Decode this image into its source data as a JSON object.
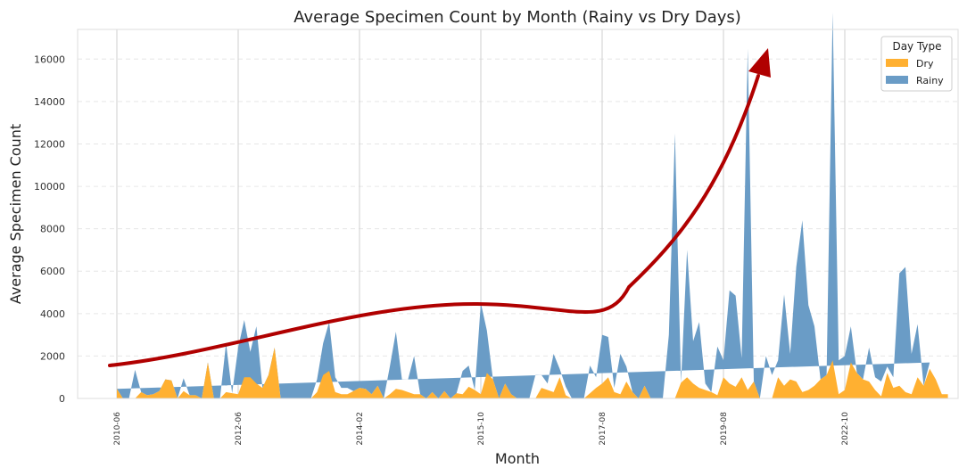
{
  "chart_data": {
    "type": "area",
    "title": "Average Specimen Count by Month (Rainy vs Dry Days)",
    "xlabel": "Month",
    "ylabel": "Average Specimen Count",
    "ylim": [
      0,
      17400
    ],
    "yticks": [
      0,
      2000,
      4000,
      6000,
      8000,
      10000,
      12000,
      14000,
      16000
    ],
    "xticks": [
      "2010-06",
      "2012-06",
      "2014-02",
      "2015-10",
      "2017-08",
      "2019-08",
      "2022-10"
    ],
    "xtick_month_index": [
      0,
      20,
      40,
      60,
      80,
      100,
      120
    ],
    "legend": {
      "title": "Day Type",
      "position": "top-right"
    },
    "grid": {
      "vertical_at_ticks": true,
      "horizontal_dashed": true
    },
    "series": [
      {
        "name": "Dry",
        "color": "#ffb031",
        "values": [
          450,
          0,
          0,
          0,
          300,
          150,
          200,
          350,
          900,
          850,
          0,
          350,
          150,
          150,
          0,
          1700,
          0,
          0,
          300,
          250,
          200,
          1000,
          1000,
          700,
          500,
          1100,
          2400,
          0,
          0,
          0,
          0,
          0,
          0,
          300,
          1100,
          1300,
          300,
          200,
          200,
          350,
          500,
          450,
          200,
          600,
          0,
          200,
          450,
          400,
          300,
          200,
          200,
          0,
          300,
          0,
          350,
          0,
          250,
          200,
          550,
          400,
          200,
          1200,
          900,
          0,
          700,
          200,
          0,
          0,
          0,
          0,
          500,
          400,
          300,
          1000,
          150,
          0,
          0,
          0,
          250,
          500,
          700,
          1000,
          300,
          200,
          800,
          300,
          0,
          600,
          0,
          0,
          0,
          0,
          0,
          750,
          1000,
          700,
          500,
          400,
          300,
          150,
          1000,
          700,
          550,
          1000,
          400,
          800,
          0,
          0,
          0,
          1000,
          600,
          900,
          800,
          300,
          400,
          600,
          900,
          1100,
          1800,
          200,
          400,
          1700,
          1200,
          900,
          800,
          400,
          100,
          1200,
          500,
          600,
          300,
          200,
          1000,
          600,
          1400,
          900,
          200,
          200
        ]
      },
      {
        "name": "Rainy",
        "color": "#6a9cc6",
        "values": [
          0,
          0,
          0,
          1350,
          0,
          0,
          0,
          0,
          0,
          0,
          0,
          600,
          0,
          0,
          0,
          0,
          0,
          0,
          2300,
          0,
          2200,
          2700,
          1200,
          2700,
          0,
          0,
          0,
          0,
          0,
          0,
          0,
          0,
          0,
          600,
          1500,
          2300,
          700,
          300,
          300,
          0,
          0,
          0,
          0,
          0,
          0,
          1300,
          2700,
          500,
          600,
          1800,
          0,
          0,
          0,
          0,
          0,
          0,
          0,
          1100,
          1000,
          0,
          4300,
          2000,
          0,
          0,
          0,
          0,
          0,
          0,
          0,
          1100,
          600,
          300,
          1800,
          400,
          400,
          0,
          0,
          0,
          1300,
          500,
          2300,
          1900,
          200,
          1900,
          700,
          0,
          0,
          0,
          0,
          0,
          0,
          3000,
          12500,
          0,
          6000,
          2000,
          3100,
          300,
          0,
          2300,
          800,
          4400,
          4300,
          900,
          16100,
          0,
          0,
          2000,
          1100,
          800,
          4300,
          1200,
          5400,
          8100,
          4000,
          2800,
          0,
          0,
          16400,
          1600,
          1600,
          1700,
          0,
          0,
          1600,
          600,
          700,
          300,
          500,
          5300,
          5900,
          1900,
          2500,
          0,
          300
        ]
      }
    ],
    "annotation_arrow": {
      "type": "curved-trend-arrow",
      "color": "#b00000"
    }
  }
}
